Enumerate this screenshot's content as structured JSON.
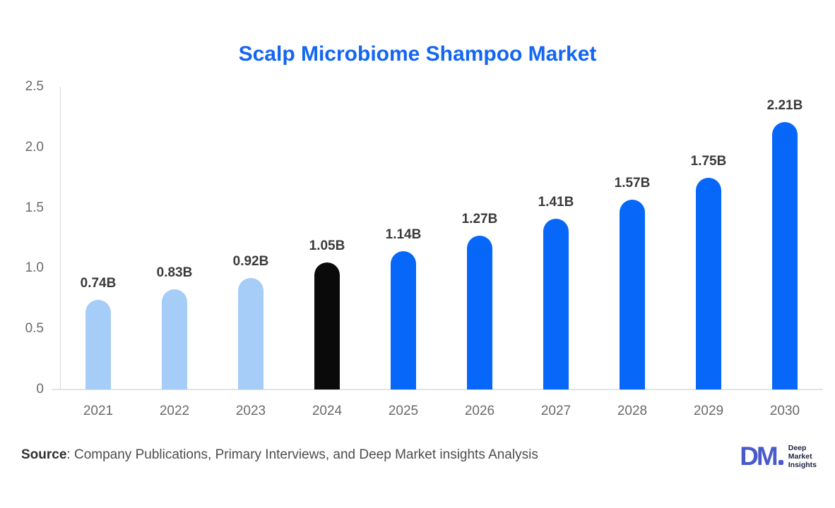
{
  "title": "Scalp Microbiome Shampoo Market",
  "chart_data": {
    "type": "bar",
    "title": "Scalp Microbiome Shampoo Market",
    "categories": [
      "2021",
      "2022",
      "2023",
      "2024",
      "2025",
      "2026",
      "2027",
      "2028",
      "2029",
      "2030"
    ],
    "values": [
      0.74,
      0.83,
      0.92,
      1.05,
      1.14,
      1.27,
      1.41,
      1.57,
      1.75,
      2.21
    ],
    "value_labels": [
      "0.74B",
      "0.83B",
      "0.92B",
      "1.05B",
      "1.14B",
      "1.27B",
      "1.41B",
      "1.57B",
      "1.75B",
      "2.21B"
    ],
    "bar_colors": [
      "#a6cdf7",
      "#a6cdf7",
      "#a6cdf7",
      "#0a0a0a",
      "#0667f8",
      "#0667f8",
      "#0667f8",
      "#0667f8",
      "#0667f8",
      "#0667f8"
    ],
    "xlabel": "",
    "ylabel": "",
    "ylim": [
      0,
      2.5
    ],
    "yticks": [
      "0",
      "0.5",
      "1.0",
      "1.5",
      "2.0",
      "2.5"
    ],
    "grid": false,
    "legend": false,
    "units": "B (billions USD)"
  },
  "colors": {
    "title": "#1266f1",
    "bar_light_blue": "#a6cdf7",
    "bar_black": "#0a0a0a",
    "bar_blue": "#0667f8",
    "axis_line": "#dadada",
    "tick_label": "#6a6a6a",
    "value_label": "#3a3a3a",
    "logo_accent": "#4a5ac8",
    "logo_text": "#1d2440"
  },
  "footer": {
    "source_label": "Source",
    "source_text": ": Company Publications, Primary Interviews, and Deep Market insights Analysis",
    "logo": {
      "monogram": "DM",
      "lines": [
        "Deep",
        "Market",
        "Insights"
      ]
    }
  }
}
